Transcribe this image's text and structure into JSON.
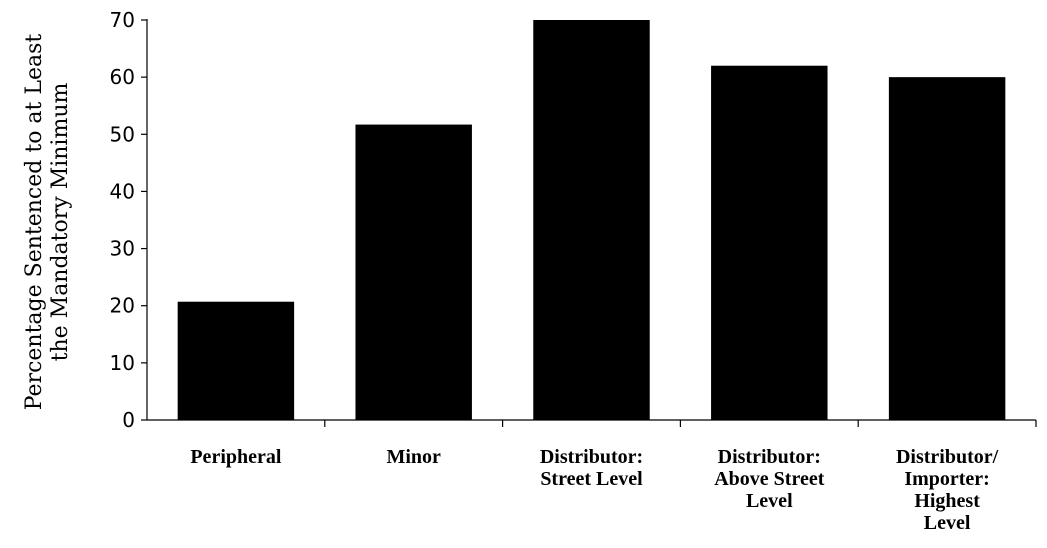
{
  "chart_data": {
    "type": "bar",
    "title": "",
    "xlabel": "",
    "ylabel": [
      "Percentage Sentenced to at Least",
      "the Mandatory Minimum"
    ],
    "ylim": [
      0,
      70
    ],
    "yticks": [
      0,
      10,
      20,
      30,
      40,
      50,
      60,
      70
    ],
    "categories": [
      [
        "Peripheral"
      ],
      [
        "Minor"
      ],
      [
        "Distributor:",
        "Street Level"
      ],
      [
        "Distributor:",
        "Above Street",
        "Level"
      ],
      [
        "Distributor/",
        "Importer:",
        "Highest",
        "Level"
      ]
    ],
    "values": [
      20.7,
      51.7,
      70.0,
      62.0,
      60.0
    ],
    "bar_color": "#000000",
    "grid": false,
    "legend": "none"
  }
}
